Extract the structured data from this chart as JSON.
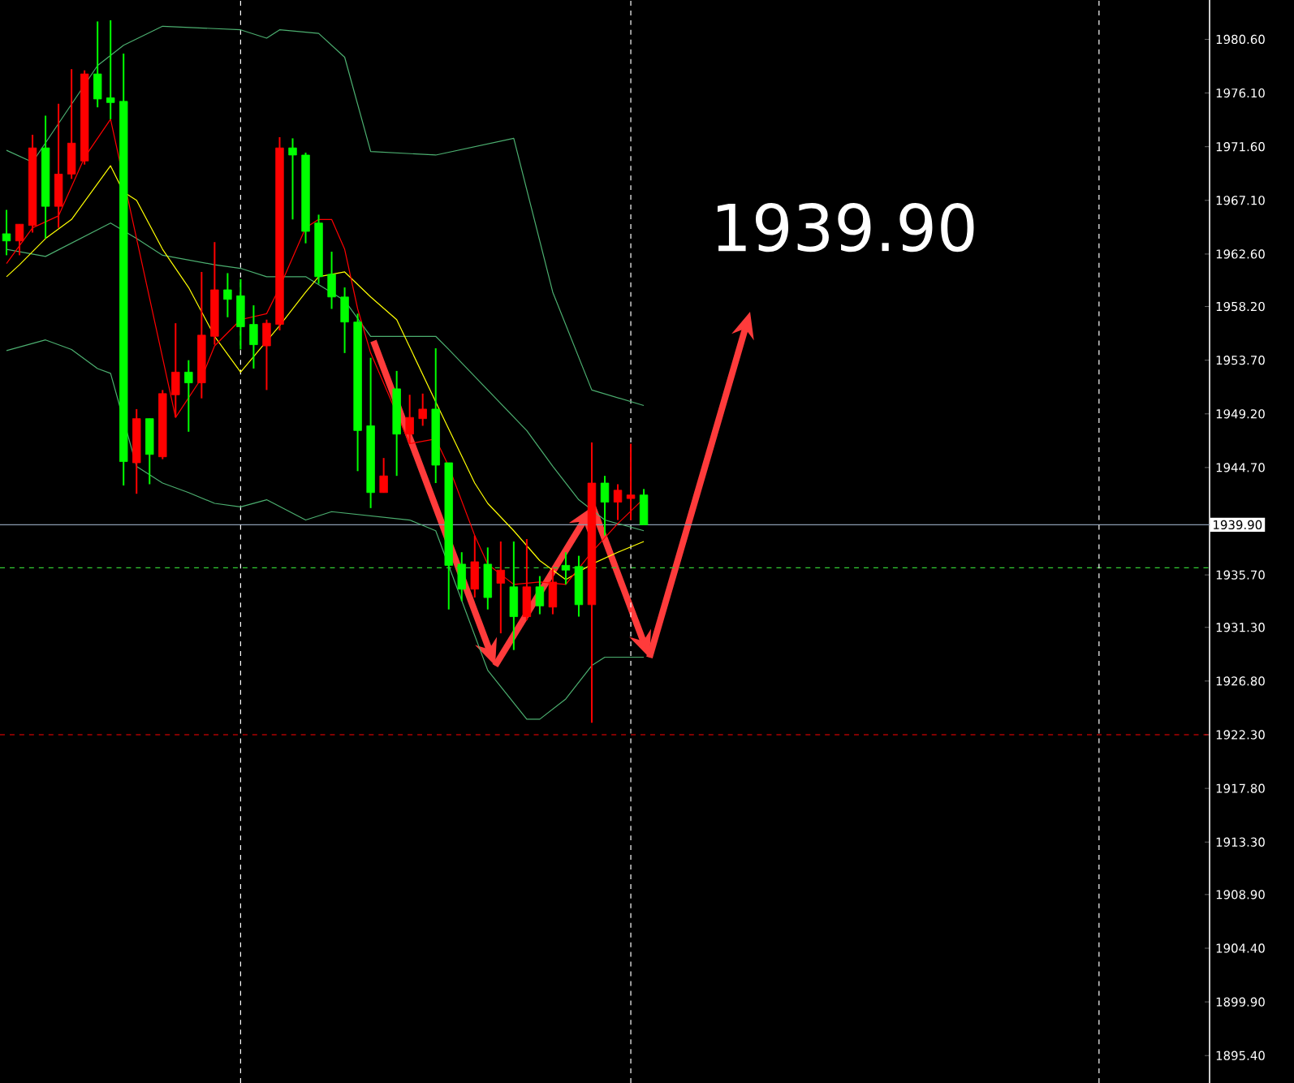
{
  "chart_data": {
    "type": "candlestick",
    "marker": "none",
    "tick_labels": "y",
    "categories": [
      null,
      null,
      null,
      null,
      null,
      null,
      null,
      null,
      null,
      null,
      null,
      null,
      null,
      null,
      null,
      null,
      null,
      null,
      null,
      null,
      null,
      null,
      null,
      null,
      null,
      null,
      null,
      null,
      null,
      null,
      null,
      null,
      null,
      null,
      null,
      null,
      null,
      null,
      null,
      null,
      null,
      null,
      null,
      null,
      null,
      null,
      null,
      null,
      null,
      null,
      null,
      null,
      null,
      null,
      null,
      null,
      null,
      null,
      null,
      null,
      null,
      null,
      null,
      null,
      null,
      null,
      null,
      null,
      null,
      null,
      null,
      null,
      null,
      null,
      null,
      null,
      null,
      null,
      null,
      null,
      null,
      null,
      null,
      null,
      null,
      null,
      null,
      null,
      null,
      null,
      null,
      null,
      null
    ],
    "ylim": [
      1893.1,
      1983.9
    ],
    "yticks": [
      {
        "value": 1980.6,
        "label": "1980.60"
      },
      {
        "value": 1976.1,
        "label": "1976.10"
      },
      {
        "value": 1971.6,
        "label": "1971.60"
      },
      {
        "value": 1967.1,
        "label": "1967.10"
      },
      {
        "value": 1962.6,
        "label": "1962.60"
      },
      {
        "value": 1958.2,
        "label": "1958.20"
      },
      {
        "value": 1953.7,
        "label": "1953.70"
      },
      {
        "value": 1949.2,
        "label": "1949.20"
      },
      {
        "value": 1944.7,
        "label": "1944.70"
      },
      {
        "value": 1935.7,
        "label": "1935.70"
      },
      {
        "value": 1931.3,
        "label": "1931.30"
      },
      {
        "value": 1926.8,
        "label": "1926.80"
      },
      {
        "value": 1922.3,
        "label": "1922.30"
      },
      {
        "value": 1917.8,
        "label": "1917.80"
      },
      {
        "value": 1913.3,
        "label": "1913.30"
      },
      {
        "value": 1908.9,
        "label": "1908.90"
      },
      {
        "value": 1904.4,
        "label": "1904.40"
      },
      {
        "value": 1899.9,
        "label": "1899.90"
      },
      {
        "value": 1895.4,
        "label": "1895.40"
      }
    ],
    "ohlc": [
      [
        1964.3,
        1966.3,
        1962.5,
        1963.7
      ],
      [
        1963.7,
        1965.1,
        1962.5,
        1965.1
      ],
      [
        1965.0,
        1972.6,
        1964.4,
        1971.5
      ],
      [
        1971.5,
        1974.2,
        1963.9,
        1966.6
      ],
      [
        1966.6,
        1975.2,
        1964.8,
        1969.3
      ],
      [
        1969.3,
        1978.1,
        1968.9,
        1971.9
      ],
      [
        1970.4,
        1978.0,
        1970.1,
        1977.7
      ],
      [
        1977.7,
        1982.1,
        1974.9,
        1975.6
      ],
      [
        1975.7,
        1982.2,
        1973.9,
        1975.3
      ],
      [
        1975.4,
        1979.4,
        1943.2,
        1945.2
      ],
      [
        1945.1,
        1949.6,
        1942.5,
        1948.8
      ],
      [
        1948.8,
        1948.8,
        1943.3,
        1945.8
      ],
      [
        1945.6,
        1951.2,
        1945.4,
        1950.9
      ],
      [
        1950.8,
        1956.8,
        1948.9,
        1952.7
      ],
      [
        1952.7,
        1953.7,
        1947.7,
        1951.8
      ],
      [
        1951.8,
        1961.1,
        1950.5,
        1955.8
      ],
      [
        1955.7,
        1963.6,
        1955.0,
        1959.6
      ],
      [
        1959.6,
        1961.0,
        1957.3,
        1958.8
      ],
      [
        1959.1,
        1960.5,
        1954.6,
        1956.5
      ],
      [
        1956.7,
        1958.3,
        1953.0,
        1955.0
      ],
      [
        1954.9,
        1957.1,
        1951.2,
        1956.8
      ],
      [
        1956.7,
        1972.4,
        1956.2,
        1971.5
      ],
      [
        1971.5,
        1972.3,
        1965.5,
        1970.9
      ],
      [
        1970.9,
        1971.1,
        1963.5,
        1964.5
      ],
      [
        1965.2,
        1965.9,
        1960.1,
        1960.7
      ],
      [
        1960.9,
        1962.8,
        1958.0,
        1959.0
      ],
      [
        1959.0,
        1959.8,
        1954.3,
        1956.9
      ],
      [
        1956.9,
        1957.6,
        1944.4,
        1947.8
      ],
      [
        1948.2,
        1953.9,
        1941.3,
        1942.6
      ],
      [
        1942.6,
        1945.5,
        1942.6,
        1944.0
      ],
      [
        1951.3,
        1952.8,
        1944.0,
        1947.5
      ],
      [
        1947.5,
        1950.8,
        1946.7,
        1948.9
      ],
      [
        1948.8,
        1950.9,
        1948.2,
        1949.6
      ],
      [
        1949.6,
        1954.7,
        1943.4,
        1944.9
      ],
      [
        1945.1,
        1945.1,
        1932.8,
        1936.5
      ],
      [
        1936.6,
        1937.6,
        1933.5,
        1934.5
      ],
      [
        1934.5,
        1939.0,
        1933.8,
        1936.8
      ],
      [
        1936.6,
        1938.0,
        1932.8,
        1933.8
      ],
      [
        1935.0,
        1938.5,
        1930.8,
        1936.1
      ],
      [
        1934.7,
        1938.5,
        1929.4,
        1932.2
      ],
      [
        1932.2,
        1938.7,
        1931.9,
        1934.7
      ],
      [
        1934.7,
        1935.6,
        1932.4,
        1933.1
      ],
      [
        1933.0,
        1936.2,
        1932.4,
        1935.1
      ],
      [
        1936.5,
        1937.6,
        1934.9,
        1936.1
      ],
      [
        1936.4,
        1937.3,
        1932.2,
        1933.2
      ],
      [
        1933.2,
        1946.8,
        1923.3,
        1943.4
      ],
      [
        1943.4,
        1944.0,
        1939.0,
        1941.8
      ],
      [
        1941.8,
        1943.3,
        1940.3,
        1942.8
      ],
      [
        1942.1,
        1946.7,
        1940.3,
        1942.4
      ],
      [
        1942.4,
        1942.9,
        1939.9,
        1939.9
      ],
      null,
      null,
      null,
      null,
      null,
      null,
      null,
      null,
      null,
      null,
      null,
      null,
      null,
      null,
      null,
      null,
      null,
      null,
      null,
      null,
      null,
      null,
      null,
      null,
      null,
      null,
      null,
      null,
      null,
      null,
      null,
      null,
      null,
      null,
      null,
      null,
      null,
      null,
      null,
      null,
      null,
      null,
      null
    ],
    "colors": [
      "#00ff00",
      "#ff0000",
      "#ff0000",
      "#00ff00",
      "#ff0000",
      "#ff0000",
      "#ff0000",
      "#00ff00",
      "#00ff00",
      "#00ff00",
      "#ff0000",
      "#00ff00",
      "#ff0000",
      "#ff0000",
      "#00ff00",
      "#ff0000",
      "#ff0000",
      "#00ff00",
      "#00ff00",
      "#00ff00",
      "#ff0000",
      "#ff0000",
      "#00ff00",
      "#00ff00",
      "#00ff00",
      "#00ff00",
      "#00ff00",
      "#00ff00",
      "#00ff00",
      "#ff0000",
      "#00ff00",
      "#ff0000",
      "#ff0000",
      "#00ff00",
      "#00ff00",
      "#00ff00",
      "#ff0000",
      "#00ff00",
      "#ff0000",
      "#00ff00",
      "#ff0000",
      "#00ff00",
      "#ff0000",
      "#00ff00",
      "#00ff00",
      "#ff0000",
      "#00ff00",
      "#ff0000",
      "#ff0000",
      "#00ff00",
      null,
      null,
      null,
      null,
      null,
      null,
      null,
      null,
      null,
      null,
      null,
      null,
      null,
      null,
      null,
      null,
      null,
      null,
      null,
      null,
      null,
      null,
      null,
      null,
      null,
      null,
      null,
      null,
      null,
      null,
      null,
      null,
      null,
      null,
      null,
      null,
      null,
      null,
      null,
      null,
      null,
      null,
      null
    ],
    "series": [
      {
        "type": "line",
        "color": "#4caf70",
        "values": [
          1971.3,
          null,
          1970.3,
          null,
          null,
          null,
          null,
          1978.4,
          null,
          1980.1,
          null,
          null,
          1981.7,
          null,
          null,
          null,
          null,
          null,
          1981.4,
          null,
          1980.7,
          1981.4,
          null,
          null,
          1981.1,
          null,
          1979.1,
          null,
          1971.2,
          null,
          null,
          null,
          null,
          1970.9,
          null,
          null,
          null,
          null,
          null,
          1972.3,
          null,
          null,
          1959.4,
          null,
          null,
          1951.2,
          null,
          null,
          null,
          1949.9,
          null,
          null,
          null,
          null,
          null,
          null,
          null,
          null,
          null,
          null,
          null,
          null,
          null,
          null,
          null,
          null,
          null,
          null,
          null,
          null,
          null,
          null,
          null,
          null,
          null,
          null,
          null,
          null,
          null,
          null,
          null,
          null,
          null,
          null,
          null,
          null,
          null,
          null,
          null,
          null,
          null,
          null,
          null
        ]
      },
      {
        "type": "line",
        "color": "#4caf70",
        "values": [
          1963.0,
          null,
          null,
          1962.4,
          null,
          null,
          null,
          null,
          1965.2,
          null,
          1963.9,
          null,
          1962.5,
          null,
          null,
          null,
          1961.7,
          null,
          1961.4,
          null,
          1960.7,
          null,
          null,
          1960.7,
          null,
          null,
          1958.7,
          null,
          1955.7,
          null,
          null,
          null,
          null,
          1955.7,
          1954.6,
          null,
          null,
          1951.2,
          null,
          null,
          1947.8,
          null,
          1944.8,
          null,
          1942.0,
          null,
          1940.3,
          null,
          null,
          1939.4,
          null,
          null,
          null,
          null,
          null,
          null,
          null,
          null,
          null,
          null,
          null,
          null,
          null,
          null,
          null,
          null,
          null,
          null,
          null,
          null,
          null,
          null,
          null,
          null,
          null,
          null,
          null,
          null,
          null,
          null,
          null,
          null,
          null,
          null,
          null,
          null,
          null,
          null,
          null,
          null,
          null,
          null,
          null
        ]
      },
      {
        "type": "line",
        "color": "#4caf70",
        "values": [
          1954.5,
          null,
          null,
          1955.4,
          null,
          1954.6,
          null,
          1953.0,
          1952.6,
          null,
          1944.8,
          null,
          1943.4,
          null,
          1942.6,
          null,
          1941.7,
          null,
          1941.4,
          null,
          1942.0,
          null,
          null,
          1940.3,
          null,
          1941.0,
          null,
          null,
          null,
          null,
          null,
          1940.3,
          null,
          1939.4,
          null,
          null,
          null,
          1927.7,
          null,
          null,
          1923.6,
          1923.6,
          null,
          1925.3,
          null,
          1928.1,
          1928.8,
          null,
          null,
          1928.8,
          null,
          null,
          null,
          null,
          null,
          null,
          null,
          null,
          null,
          null,
          null,
          null,
          null,
          null,
          null,
          null,
          null,
          null,
          null,
          null,
          null,
          null,
          null,
          null,
          null,
          null,
          null,
          null,
          null,
          null,
          null,
          null,
          null,
          null,
          null,
          null,
          null,
          null,
          null,
          null,
          null,
          null,
          null
        ]
      },
      {
        "type": "line",
        "color": "#ffff00",
        "values": [
          1960.7,
          1961.7,
          null,
          1963.9,
          null,
          1965.5,
          null,
          null,
          1970.0,
          1967.8,
          1967.1,
          null,
          1963.0,
          null,
          1959.8,
          null,
          1955.7,
          null,
          1952.7,
          null,
          1955.3,
          1956.6,
          null,
          1959.4,
          1960.7,
          null,
          1961.1,
          null,
          1959.0,
          null,
          1957.1,
          null,
          null,
          1950.2,
          null,
          null,
          1943.4,
          1941.7,
          null,
          1939.4,
          null,
          1936.9,
          null,
          1935.3,
          null,
          1936.6,
          null,
          1937.6,
          null,
          1938.5,
          null,
          null,
          null,
          null,
          null,
          null,
          null,
          null,
          null,
          null,
          null,
          null,
          null,
          null,
          null,
          null,
          null,
          null,
          null,
          null,
          null,
          null,
          null,
          null,
          null,
          null,
          null,
          null,
          null,
          null,
          null,
          null,
          null,
          null,
          null,
          null,
          null,
          null,
          null,
          null,
          null,
          null,
          null
        ]
      },
      {
        "type": "line",
        "color": "#ff0000",
        "values": [
          1961.8,
          null,
          1964.8,
          null,
          1965.8,
          null,
          1970.7,
          null,
          1973.9,
          null,
          null,
          null,
          null,
          1948.9,
          null,
          1952.2,
          1954.9,
          null,
          1957.1,
          null,
          1957.6,
          1959.8,
          null,
          1964.8,
          1965.5,
          1965.5,
          1963.0,
          1958.0,
          1954.3,
          null,
          null,
          1946.7,
          null,
          1947.1,
          1944.8,
          null,
          1939.0,
          1936.6,
          null,
          1934.9,
          null,
          1935.1,
          null,
          1934.9,
          null,
          1937.6,
          null,
          1940.0,
          null,
          1942.1,
          null,
          null,
          null,
          null,
          null,
          null,
          null,
          null,
          null,
          null,
          null,
          null,
          null,
          null,
          null,
          null,
          null,
          null,
          null,
          null,
          null,
          null,
          null,
          null,
          null,
          null,
          null,
          null,
          null,
          null,
          null,
          null,
          null,
          null,
          null,
          null,
          null,
          null,
          null,
          null,
          null,
          null,
          null
        ]
      }
    ],
    "ref_lines": [
      {
        "axis": "y",
        "value": 1939.9,
        "label": "1939.90",
        "color": "#8a9bb0",
        "line_style": "solid"
      },
      {
        "axis": "y",
        "value": 1936.3,
        "color": "#33cc33",
        "line_style": "dashed"
      },
      {
        "axis": "y",
        "value": 1922.3,
        "color": "#ff0000",
        "line_style": "dashed"
      }
    ],
    "grid": "x",
    "annotations": [
      "1939.90"
    ]
  }
}
